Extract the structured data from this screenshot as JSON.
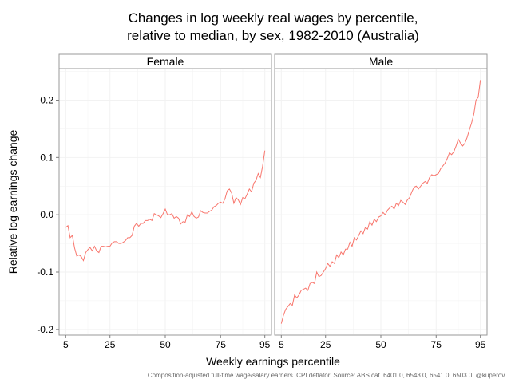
{
  "chart_data": {
    "type": "line",
    "title_lines": [
      "Changes in log weekly real wages by percentile,",
      "relative to median, by sex, 1982-2010 (Australia)"
    ],
    "xlabel": "Weekly earnings percentile",
    "ylabel": "Relative log earnings change",
    "caption": "Composition-adjusted full-time wage/salary earners. CPI deflator. Source: ABS cat. 6401.0, 6543.0, 6541.0, 6503.0. @kuperov.",
    "xlim": [
      2,
      98
    ],
    "ylim": [
      -0.21,
      0.255
    ],
    "x_ticks": [
      5,
      25,
      50,
      75,
      95
    ],
    "x_tick_labels": [
      "5",
      "25",
      "50",
      "75",
      "95"
    ],
    "y_ticks": [
      -0.2,
      -0.1,
      0.0,
      0.1,
      0.2
    ],
    "y_tick_labels": [
      "-0.2",
      "-0.1",
      "0.0",
      "0.1",
      "0.2"
    ],
    "line_color": "#F8766D",
    "panel_border_color": "#999999",
    "grid_color": "#f2f2f2",
    "panels": [
      {
        "name": "Female",
        "x": [
          5,
          6,
          7,
          8,
          9,
          10,
          11,
          12,
          13,
          14,
          15,
          16,
          17,
          18,
          19,
          20,
          21,
          22,
          23,
          24,
          25,
          26,
          27,
          28,
          29,
          30,
          31,
          32,
          33,
          34,
          35,
          36,
          37,
          38,
          39,
          40,
          41,
          42,
          43,
          44,
          45,
          46,
          47,
          48,
          49,
          50,
          51,
          52,
          53,
          54,
          55,
          56,
          57,
          58,
          59,
          60,
          61,
          62,
          63,
          64,
          65,
          66,
          67,
          68,
          69,
          70,
          71,
          72,
          73,
          74,
          75,
          76,
          77,
          78,
          79,
          80,
          81,
          82,
          83,
          84,
          85,
          86,
          87,
          88,
          89,
          90,
          91,
          92,
          93,
          94,
          95
        ],
        "values": [
          -0.022,
          -0.019,
          -0.04,
          -0.036,
          -0.058,
          -0.072,
          -0.07,
          -0.073,
          -0.08,
          -0.066,
          -0.061,
          -0.057,
          -0.063,
          -0.055,
          -0.063,
          -0.066,
          -0.055,
          -0.055,
          -0.056,
          -0.055,
          -0.055,
          -0.049,
          -0.047,
          -0.047,
          -0.05,
          -0.05,
          -0.048,
          -0.045,
          -0.04,
          -0.04,
          -0.036,
          -0.02,
          -0.015,
          -0.02,
          -0.015,
          -0.015,
          -0.01,
          -0.01,
          -0.008,
          -0.01,
          0.002,
          0.0,
          -0.002,
          -0.005,
          0.002,
          0.01,
          0.0,
          0.0,
          0.002,
          -0.006,
          -0.003,
          -0.006,
          -0.016,
          -0.012,
          -0.013,
          0.0,
          -0.003,
          0.005,
          -0.003,
          -0.006,
          -0.004,
          0.007,
          0.004,
          0.003,
          0.003,
          0.006,
          0.008,
          0.014,
          0.016,
          0.02,
          0.022,
          0.02,
          0.028,
          0.042,
          0.045,
          0.038,
          0.02,
          0.03,
          0.026,
          0.018,
          0.03,
          0.028,
          0.036,
          0.045,
          0.04,
          0.055,
          0.06,
          0.072,
          0.065,
          0.085,
          0.112
        ]
      },
      {
        "name": "Male",
        "x": [
          5,
          6,
          7,
          8,
          9,
          10,
          11,
          12,
          13,
          14,
          15,
          16,
          17,
          18,
          19,
          20,
          21,
          22,
          23,
          24,
          25,
          26,
          27,
          28,
          29,
          30,
          31,
          32,
          33,
          34,
          35,
          36,
          37,
          38,
          39,
          40,
          41,
          42,
          43,
          44,
          45,
          46,
          47,
          48,
          49,
          50,
          51,
          52,
          53,
          54,
          55,
          56,
          57,
          58,
          59,
          60,
          61,
          62,
          63,
          64,
          65,
          66,
          67,
          68,
          69,
          70,
          71,
          72,
          73,
          74,
          75,
          76,
          77,
          78,
          79,
          80,
          81,
          82,
          83,
          84,
          85,
          86,
          87,
          88,
          89,
          90,
          91,
          92,
          93,
          94,
          95
        ],
        "values": [
          -0.19,
          -0.175,
          -0.165,
          -0.16,
          -0.155,
          -0.158,
          -0.14,
          -0.145,
          -0.14,
          -0.132,
          -0.13,
          -0.128,
          -0.132,
          -0.12,
          -0.118,
          -0.12,
          -0.1,
          -0.108,
          -0.106,
          -0.1,
          -0.094,
          -0.085,
          -0.09,
          -0.082,
          -0.085,
          -0.07,
          -0.075,
          -0.065,
          -0.07,
          -0.06,
          -0.06,
          -0.048,
          -0.055,
          -0.04,
          -0.044,
          -0.036,
          -0.028,
          -0.033,
          -0.022,
          -0.025,
          -0.012,
          -0.018,
          -0.008,
          -0.012,
          -0.004,
          -0.002,
          0.004,
          0.0,
          0.008,
          0.012,
          0.015,
          0.01,
          0.02,
          0.016,
          0.025,
          0.022,
          0.018,
          0.026,
          0.03,
          0.04,
          0.048,
          0.05,
          0.045,
          0.05,
          0.055,
          0.058,
          0.055,
          0.065,
          0.07,
          0.068,
          0.07,
          0.072,
          0.08,
          0.085,
          0.09,
          0.098,
          0.108,
          0.105,
          0.11,
          0.12,
          0.132,
          0.125,
          0.12,
          0.125,
          0.135,
          0.148,
          0.16,
          0.175,
          0.2,
          0.205,
          0.235
        ]
      }
    ]
  }
}
